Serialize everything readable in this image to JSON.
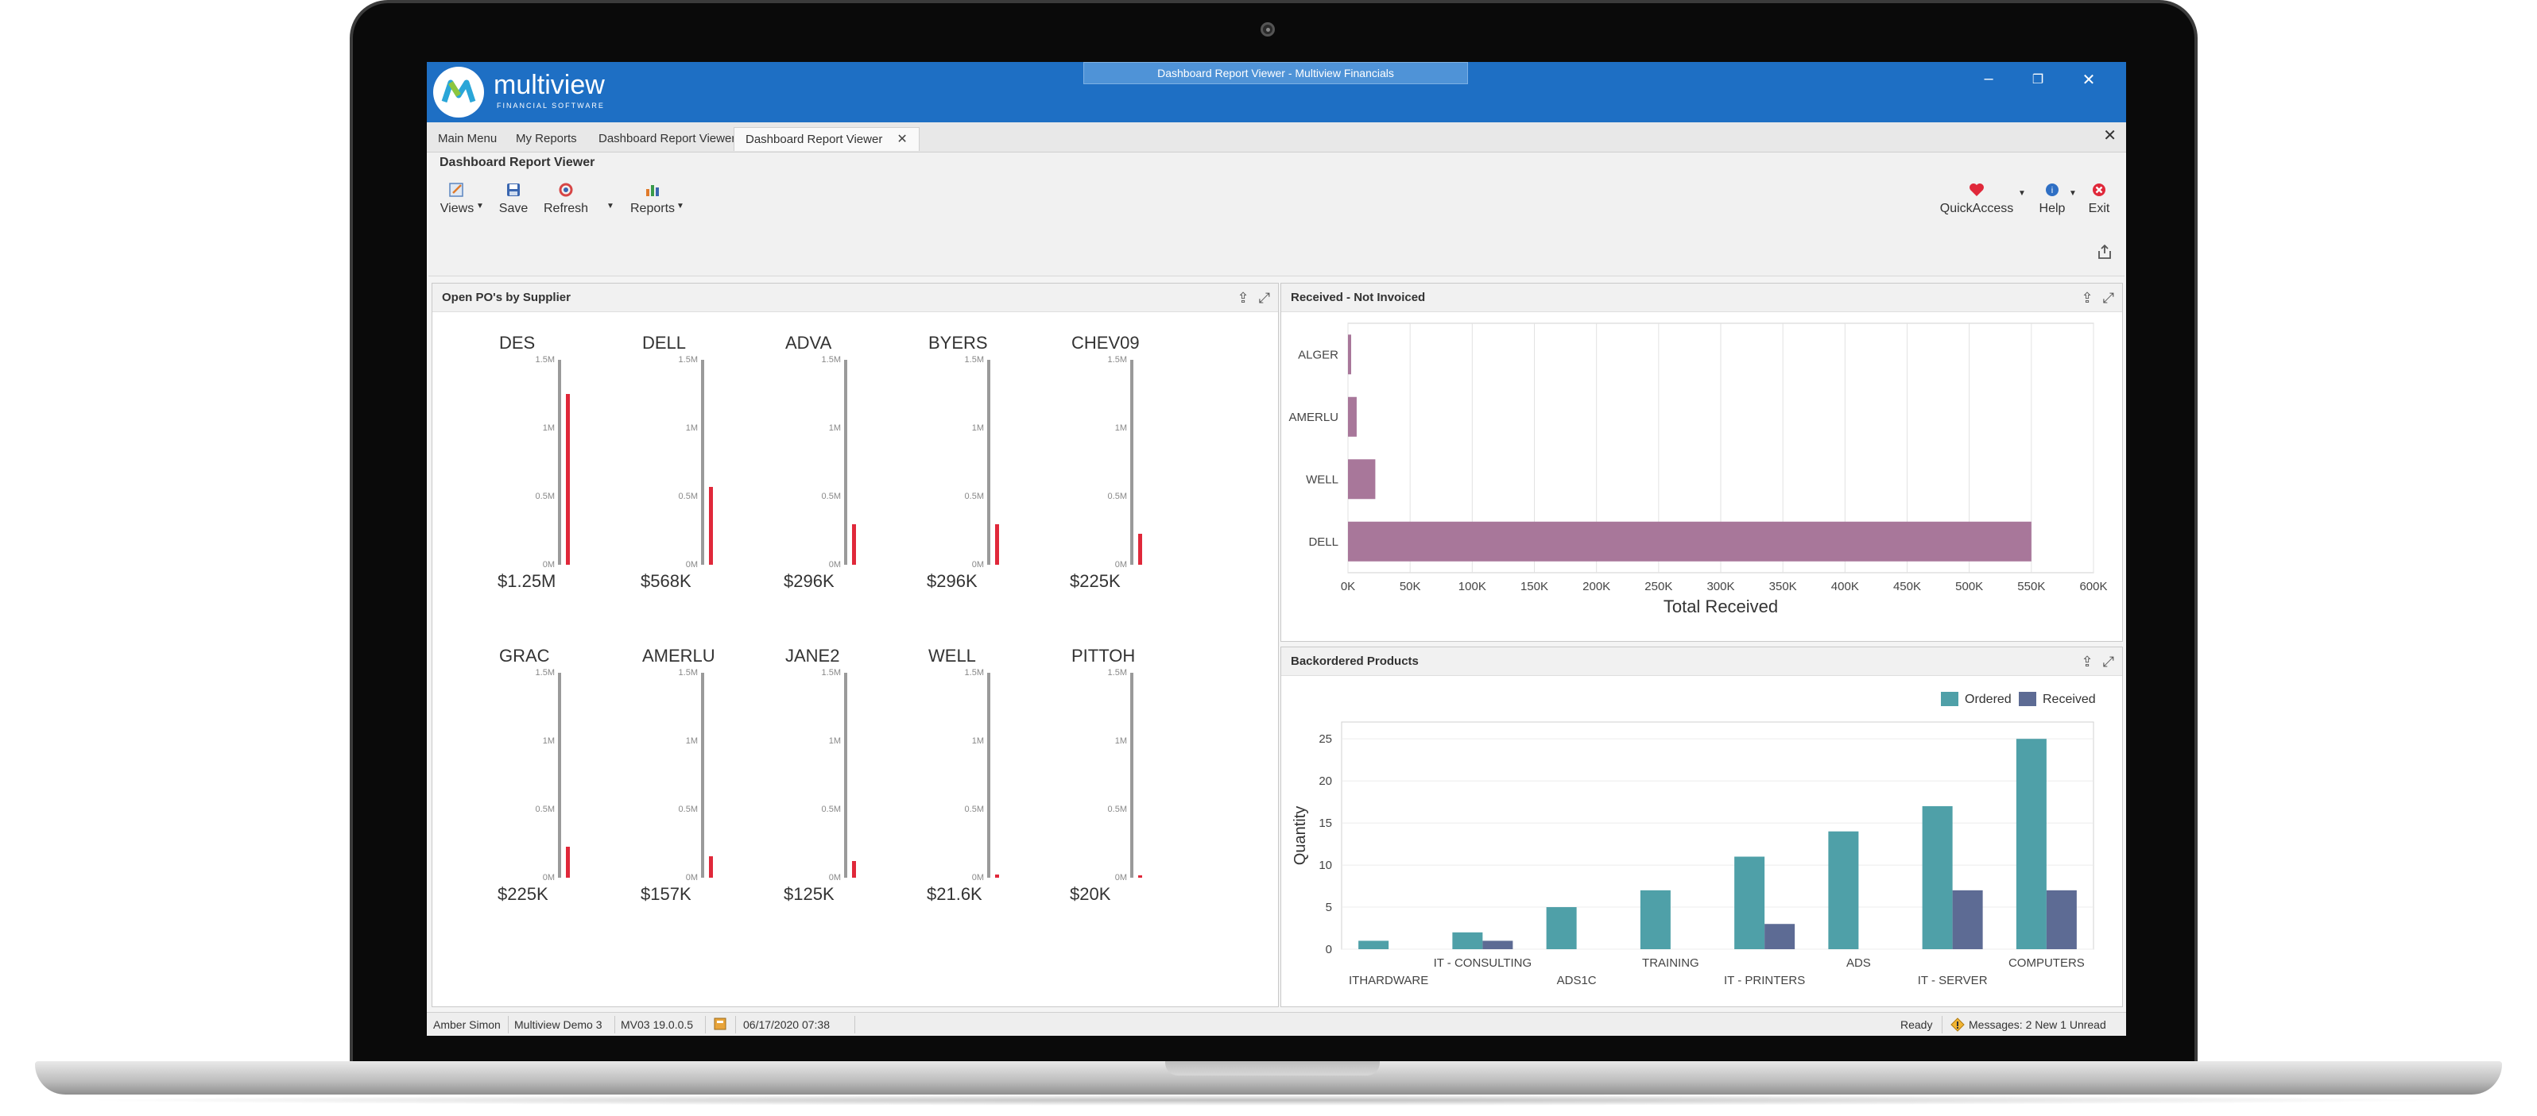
{
  "window": {
    "title": "Dashboard Report Viewer - Multiview Financials",
    "brand": "multiview",
    "brand_sub": "FINANCIAL SOFTWARE"
  },
  "tabs": [
    {
      "label": "Main Menu"
    },
    {
      "label": "My Reports"
    },
    {
      "label": "Dashboard Report Viewer"
    },
    {
      "label": "Dashboard Report Viewer",
      "active": true
    }
  ],
  "ribbon": {
    "title": "Dashboard Report Viewer",
    "views": "Views",
    "save": "Save",
    "refresh": "Refresh",
    "reports": "Reports",
    "quickaccess": "QuickAccess",
    "help": "Help",
    "exit": "Exit"
  },
  "open_pos": {
    "title": "Open PO's by Supplier",
    "ticks": [
      "1.5M",
      "1M",
      "0.5M",
      "0M"
    ],
    "max": 1500000,
    "gauges": [
      {
        "name": "DES",
        "value": 1250000,
        "label": "$1.25M"
      },
      {
        "name": "DELL",
        "value": 568000,
        "label": "$568K"
      },
      {
        "name": "ADVA",
        "value": 296000,
        "label": "$296K"
      },
      {
        "name": "BYERS",
        "value": 296000,
        "label": "$296K"
      },
      {
        "name": "CHEV09",
        "value": 225000,
        "label": "$225K"
      },
      {
        "name": "GRAC",
        "value": 225000,
        "label": "$225K"
      },
      {
        "name": "AMERLU",
        "value": 157000,
        "label": "$157K"
      },
      {
        "name": "JANE2",
        "value": 125000,
        "label": "$125K"
      },
      {
        "name": "WELL",
        "value": 21600,
        "label": "$21.6K"
      },
      {
        "name": "PITTOH",
        "value": 20000,
        "label": "$20K"
      }
    ]
  },
  "received": {
    "title": "Received - Not Invoiced"
  },
  "backordered": {
    "title": "Backordered Products"
  },
  "chart_data": [
    {
      "type": "bar",
      "orientation": "horizontal",
      "title": "Received - Not Invoiced",
      "categories": [
        "ALGER",
        "AMERLU",
        "WELL",
        "DELL"
      ],
      "values": [
        2000,
        7000,
        22000,
        550000
      ],
      "xlabel": "Total Received",
      "xlim": [
        0,
        600000
      ],
      "xticks": [
        "0K",
        "50K",
        "100K",
        "150K",
        "200K",
        "250K",
        "300K",
        "350K",
        "400K",
        "450K",
        "500K",
        "550K",
        "600K"
      ],
      "color": "#a8779a",
      "grid": true
    },
    {
      "type": "bar",
      "title": "Backordered Products",
      "categories": [
        "ITHARDWARE",
        "IT - CONSULTING",
        "ADS1C",
        "TRAINING",
        "IT - PRINTERS",
        "ADS",
        "IT - SERVER",
        "COMPUTERS"
      ],
      "series": [
        {
          "name": "Ordered",
          "color": "#4fa0a8",
          "values": [
            1,
            2,
            5,
            7,
            11,
            14,
            17,
            25
          ]
        },
        {
          "name": "Received",
          "color": "#5d6b94",
          "values": [
            0,
            1,
            0,
            0,
            3,
            0,
            7,
            7
          ]
        }
      ],
      "ylabel": "Quantity",
      "ylim": [
        0,
        27
      ],
      "yticks": [
        "0",
        "5",
        "10",
        "15",
        "20",
        "25"
      ],
      "legend": "top-right"
    }
  ],
  "status": {
    "user": "Amber Simon",
    "company": "Multiview Demo 3",
    "version": "MV03 19.0.0.5",
    "datetime": "06/17/2020 07:38",
    "ready": "Ready",
    "messages": "Messages: 2 New 1 Unread"
  }
}
